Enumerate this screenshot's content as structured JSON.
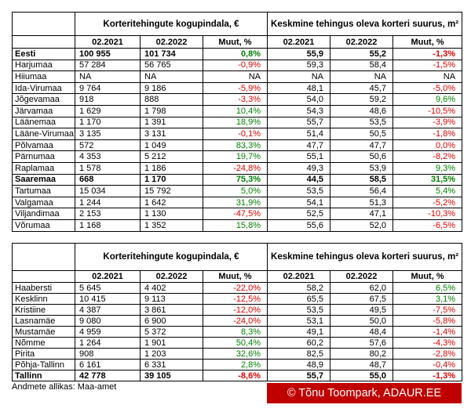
{
  "tables": [
    {
      "headers": [
        "Korteritehingute kogupindala, €",
        "Keskmine tehingus oleva korteri suurus, m²"
      ],
      "subheaders": [
        "02.2021",
        "02.2022",
        "Muut, %",
        "02.2021",
        "02.2022",
        "Muut, %"
      ],
      "rows": [
        {
          "cells": [
            "Eesti",
            "100 955",
            "101 734",
            "0,8%",
            "55,9",
            "55,2",
            "-1,3%"
          ],
          "bold": true
        },
        {
          "cells": [
            "Harjumaa",
            "57 284",
            "56 765",
            "-0,9%",
            "59,3",
            "58,4",
            "-1,5%"
          ]
        },
        {
          "cells": [
            "Hiiumaa",
            "NA",
            "NA",
            "NA",
            "NA",
            "NA",
            "NA"
          ]
        },
        {
          "cells": [
            "Ida-Virumaa",
            "9 764",
            "9 186",
            "-5,9%",
            "48,1",
            "45,7",
            "-5,0%"
          ]
        },
        {
          "cells": [
            "Jõgevamaa",
            "918",
            "888",
            "-3,3%",
            "54,0",
            "59,2",
            "9,6%"
          ]
        },
        {
          "cells": [
            "Järvamaa",
            "1 629",
            "1 798",
            "10,4%",
            "54,3",
            "48,6",
            "-10,5%"
          ]
        },
        {
          "cells": [
            "Läänemaa",
            "1 170",
            "1 391",
            "18,9%",
            "55,7",
            "53,5",
            "-3,9%"
          ]
        },
        {
          "cells": [
            "Lääne-Virumaa",
            "3 135",
            "3 131",
            "-0,1%",
            "51,4",
            "50,5",
            "-1,8%"
          ]
        },
        {
          "cells": [
            "Põlvamaa",
            "572",
            "1 049",
            "83,3%",
            "47,7",
            "47,7",
            "0,0%"
          ]
        },
        {
          "cells": [
            "Pärnumaa",
            "4 353",
            "5 212",
            "19,7%",
            "55,1",
            "50,6",
            "-8,2%"
          ]
        },
        {
          "cells": [
            "Raplamaa",
            "1 578",
            "1 186",
            "-24,8%",
            "49,3",
            "53,9",
            "9,3%"
          ]
        },
        {
          "cells": [
            "Saaremaa",
            "668",
            "1 170",
            "75,3%",
            "44,5",
            "58,5",
            "31,5%"
          ],
          "bold": true
        },
        {
          "cells": [
            "Tartumaa",
            "15 034",
            "15 792",
            "5,0%",
            "53,5",
            "56,4",
            "5,4%"
          ]
        },
        {
          "cells": [
            "Valgamaa",
            "1 244",
            "1 642",
            "31,9%",
            "54,1",
            "51,3",
            "-5,2%"
          ]
        },
        {
          "cells": [
            "Viljandimaa",
            "2 153",
            "1 130",
            "-47,5%",
            "52,5",
            "47,1",
            "-10,3%"
          ]
        },
        {
          "cells": [
            "Võrumaa",
            "1 168",
            "1 352",
            "15,8%",
            "55,6",
            "52,0",
            "-6,5%"
          ]
        }
      ]
    },
    {
      "headers": [
        "Korteritehingute kogupindala, €",
        "Keskmine tehingus oleva korteri suurus, m²"
      ],
      "subheaders": [
        "02.2021",
        "02.2022",
        "Muut, %",
        "02.2021",
        "02.2022",
        "Muut, %"
      ],
      "rows": [
        {
          "cells": [
            "Haabersti",
            "5 645",
            "4 402",
            "-22,0%",
            "58,2",
            "62,0",
            "6,5%"
          ]
        },
        {
          "cells": [
            "Kesklinn",
            "10 415",
            "9 113",
            "-12,5%",
            "65,5",
            "67,5",
            "3,1%"
          ]
        },
        {
          "cells": [
            "Kristiine",
            "4 387",
            "3 861",
            "-12,0%",
            "53,5",
            "49,5",
            "-7,5%"
          ]
        },
        {
          "cells": [
            "Lasnamäe",
            "9 080",
            "6 900",
            "-24,0%",
            "53,1",
            "50,0",
            "-5,8%"
          ]
        },
        {
          "cells": [
            "Mustamäe",
            "4 959",
            "5 372",
            "8,3%",
            "49,1",
            "48,4",
            "-1,4%"
          ]
        },
        {
          "cells": [
            "Nõmme",
            "1 264",
            "1 901",
            "50,4%",
            "60,2",
            "57,6",
            "-4,3%"
          ]
        },
        {
          "cells": [
            "Pirita",
            "908",
            "1 203",
            "32,6%",
            "82,5",
            "80,2",
            "-2,8%"
          ]
        },
        {
          "cells": [
            "Põhja-Tallinn",
            "6 161",
            "6 331",
            "2,8%",
            "48,9",
            "48,7",
            "-0,4%"
          ]
        },
        {
          "cells": [
            "Tallinn",
            "42 778",
            "39 105",
            "-8,6%",
            "55,7",
            "55,0",
            "-1,3%"
          ],
          "bold": true
        }
      ]
    }
  ],
  "footer": {
    "source": "Andmete allikas: Maa-amet",
    "credit": "© Tõnu Toompark, ADAUR.EE"
  }
}
